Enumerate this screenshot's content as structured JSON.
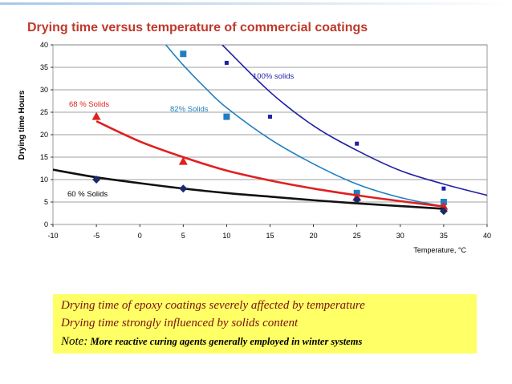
{
  "slide": {
    "title": "Drying time versus temperature of commercial coatings",
    "notes": [
      "Drying time of epoxy coatings severely affected by temperature",
      "Drying time strongly influenced by solids content"
    ],
    "note_prefix": "Note:",
    "note_text": " More reactive curing agents generally employed in winter systems"
  },
  "chart_data": {
    "type": "scatter",
    "title": "Drying time versus temperature of commercial coatings",
    "xlabel": "Temperature,  °C",
    "ylabel": "Drying time Hours",
    "xlim": [
      -10,
      40
    ],
    "ylim": [
      0,
      40
    ],
    "xticks": [
      -10,
      -5,
      0,
      5,
      10,
      15,
      20,
      25,
      30,
      35,
      40
    ],
    "yticks": [
      0,
      5,
      10,
      15,
      20,
      25,
      30,
      35,
      40
    ],
    "grid": "horizontal",
    "series": [
      {
        "name": "100% solids",
        "color": "#1f1fa8",
        "marker": "square-small",
        "points": [
          [
            10,
            36
          ],
          [
            15,
            24
          ],
          [
            25,
            18
          ],
          [
            35,
            8
          ]
        ],
        "trend": [
          [
            9.5,
            40
          ],
          [
            15,
            29.5
          ],
          [
            20,
            22
          ],
          [
            25,
            16.5
          ],
          [
            30,
            12
          ],
          [
            35,
            9
          ],
          [
            40,
            6.5
          ]
        ]
      },
      {
        "name": "82% Solids",
        "color": "#1f7fc4",
        "marker": "square",
        "points": [
          [
            5,
            38
          ],
          [
            10,
            24
          ],
          [
            25,
            7
          ],
          [
            35,
            5
          ]
        ],
        "trend": [
          [
            3,
            40
          ],
          [
            5,
            35.5
          ],
          [
            7.5,
            30.5
          ],
          [
            10,
            26
          ],
          [
            15,
            19
          ],
          [
            20,
            13.5
          ],
          [
            25,
            9
          ],
          [
            30,
            6
          ],
          [
            35,
            4
          ]
        ]
      },
      {
        "name": "68 % Solids",
        "color": "#e02020",
        "marker": "triangle",
        "points": [
          [
            -5,
            24
          ],
          [
            5,
            14
          ],
          [
            25,
            6
          ],
          [
            35,
            4
          ]
        ],
        "trend": [
          [
            -5,
            23
          ],
          [
            0,
            18.5
          ],
          [
            5,
            15
          ],
          [
            10,
            12
          ],
          [
            15,
            9.8
          ],
          [
            20,
            8
          ],
          [
            25,
            6.5
          ],
          [
            30,
            5.2
          ],
          [
            35,
            4
          ]
        ]
      },
      {
        "name": "60 % Solids",
        "color": "#111111",
        "marker": "diamond",
        "marker_color": "#1a2a6c",
        "points": [
          [
            -5,
            10
          ],
          [
            5,
            8
          ],
          [
            25,
            5.5
          ],
          [
            35,
            3
          ]
        ],
        "trend": [
          [
            -10,
            12.2
          ],
          [
            -5,
            10.5
          ],
          [
            0,
            9.2
          ],
          [
            5,
            8
          ],
          [
            10,
            7
          ],
          [
            15,
            6.2
          ],
          [
            20,
            5.4
          ],
          [
            25,
            4.7
          ],
          [
            30,
            4.1
          ],
          [
            35,
            3.5
          ]
        ]
      }
    ]
  }
}
